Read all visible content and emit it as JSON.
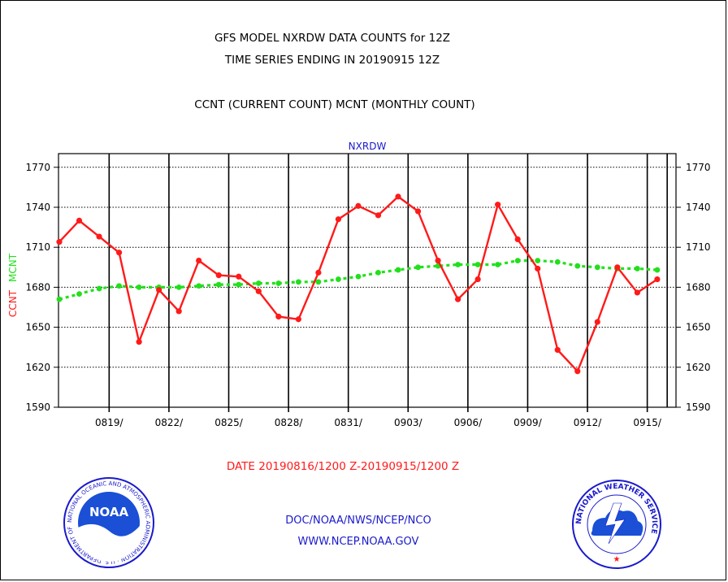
{
  "header": {
    "line1": "GFS MODEL NXRDW DATA COUNTS for 12Z",
    "line2": "TIME SERIES ENDING IN 20190915 12Z",
    "line3": "CCNT (CURRENT COUNT) MCNT (MONTHLY COUNT)"
  },
  "footer": {
    "date_range": "DATE 20190816/1200 Z-20190915/1200 Z",
    "org": "DOC/NOAA/NWS/NCEP/NCO",
    "url": "WWW.NCEP.NOAA.GOV"
  },
  "logos": {
    "noaa_text": "NOAA",
    "noaa_ring": "NATIONAL OCEANIC AND ATMOSPHERIC ADMINISTRATION · U.S. DEPARTMENT OF COMMERCE ·",
    "nws_ring": "NATIONAL WEATHER SERVICE"
  },
  "colors": {
    "ccnt": "#ff1a1a",
    "mcnt": "#22e01c",
    "title_blue": "#1a1acc",
    "text_black": "#000000",
    "footer_red": "#ff1a1a",
    "footer_blue": "#1a1acc"
  },
  "chart_data": {
    "type": "line",
    "title": "NXRDW",
    "ylabel_ccnt": "CCNT",
    "ylabel_mcnt": "MCNT",
    "ylim": [
      1590,
      1780
    ],
    "yticks": [
      1590,
      1620,
      1650,
      1680,
      1710,
      1740,
      1770
    ],
    "xlim": [
      0,
      30.8
    ],
    "xticks": [
      {
        "x": 2.5,
        "label": "0819/"
      },
      {
        "x": 5.5,
        "label": "0822/"
      },
      {
        "x": 8.5,
        "label": "0825/"
      },
      {
        "x": 11.5,
        "label": "0828/"
      },
      {
        "x": 14.5,
        "label": "0831/"
      },
      {
        "x": 17.5,
        "label": "0903/"
      },
      {
        "x": 20.5,
        "label": "0906/"
      },
      {
        "x": 23.5,
        "label": "0909/"
      },
      {
        "x": 26.5,
        "label": "0912/"
      },
      {
        "x": 29.5,
        "label": "0915/"
      }
    ],
    "vlines": [
      2.5,
      5.5,
      8.5,
      11.5,
      14.5,
      17.5,
      20.5,
      23.5,
      26.5,
      29.5,
      30.5
    ],
    "grid": true,
    "x": [
      0,
      1,
      2,
      3,
      4,
      5,
      6,
      7,
      8,
      9,
      10,
      11,
      12,
      13,
      14,
      15,
      16,
      17,
      18,
      19,
      20,
      21,
      22,
      23,
      24,
      25,
      26,
      27,
      28,
      29,
      30
    ],
    "series": [
      {
        "name": "CCNT",
        "color": "#ff1a1a",
        "values": [
          1714,
          1730,
          1718,
          1706,
          1639,
          1678,
          1662,
          1700,
          1689,
          1688,
          1677,
          1658,
          1656,
          1691,
          1731,
          1741,
          1734,
          1748,
          1737,
          1700,
          1671,
          1686,
          1742,
          1716,
          1694,
          1633,
          1617,
          1654,
          1695,
          1676,
          1686
        ]
      },
      {
        "name": "MCNT",
        "color": "#22e01c",
        "values": [
          1671,
          1675,
          1679,
          1681,
          1680,
          1680,
          1680,
          1681,
          1682,
          1682,
          1683,
          1683,
          1684,
          1684,
          1686,
          1688,
          1691,
          1693,
          1695,
          1696,
          1697,
          1697,
          1697,
          1700,
          1700,
          1699,
          1696,
          1695,
          1694,
          1694,
          1693
        ]
      }
    ]
  }
}
